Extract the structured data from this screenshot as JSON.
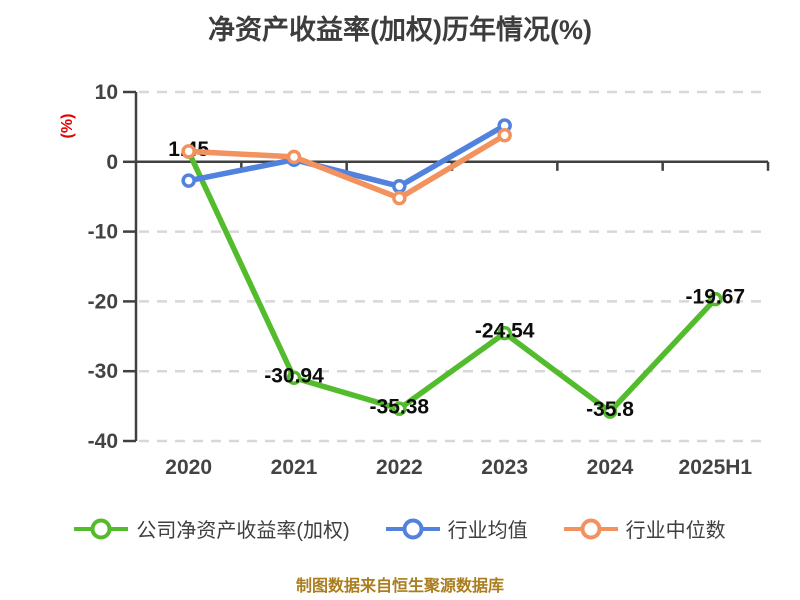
{
  "title": "净资产收益率(加权)历年情况(%)",
  "footer": "制图数据来自恒生聚源数据库",
  "chart_data": {
    "type": "line",
    "title": "净资产收益率(加权)历年情况(%)",
    "categories": [
      "2020",
      "2021",
      "2022",
      "2023",
      "2024",
      "2025H1"
    ],
    "series": [
      {
        "name": "公司净资产收益率(加权)",
        "color": "#53bc2d",
        "values": [
          1.45,
          -30.94,
          -35.38,
          -24.54,
          -35.8,
          -19.67
        ],
        "labels": [
          "1.45",
          "-30.94",
          "-35.38",
          "-24.54",
          "-35.8",
          "-19.67"
        ]
      },
      {
        "name": "行业均值",
        "color": "#5182dd",
        "values": [
          -2.7,
          0.3,
          -3.5,
          5.2
        ]
      },
      {
        "name": "行业中位数",
        "color": "#f2925f",
        "values": [
          1.5,
          0.7,
          -5.2,
          3.8
        ]
      }
    ],
    "ylabel": "(%)",
    "ylim": [
      -40,
      10
    ],
    "yticks": [
      10,
      0,
      -10,
      -20,
      -30,
      -40
    ],
    "grid": "horizontal dashed, solid zero line",
    "legend_position": "bottom"
  },
  "colors": {
    "axis": "#404040",
    "grid": "#d8d8d8",
    "tick_text": "#434343",
    "data_label": "#0d0d0d",
    "y_axis_label": "#e60000",
    "title": "#3d3d3d",
    "footer": "#aa7d1f",
    "background": "#ffffff"
  }
}
